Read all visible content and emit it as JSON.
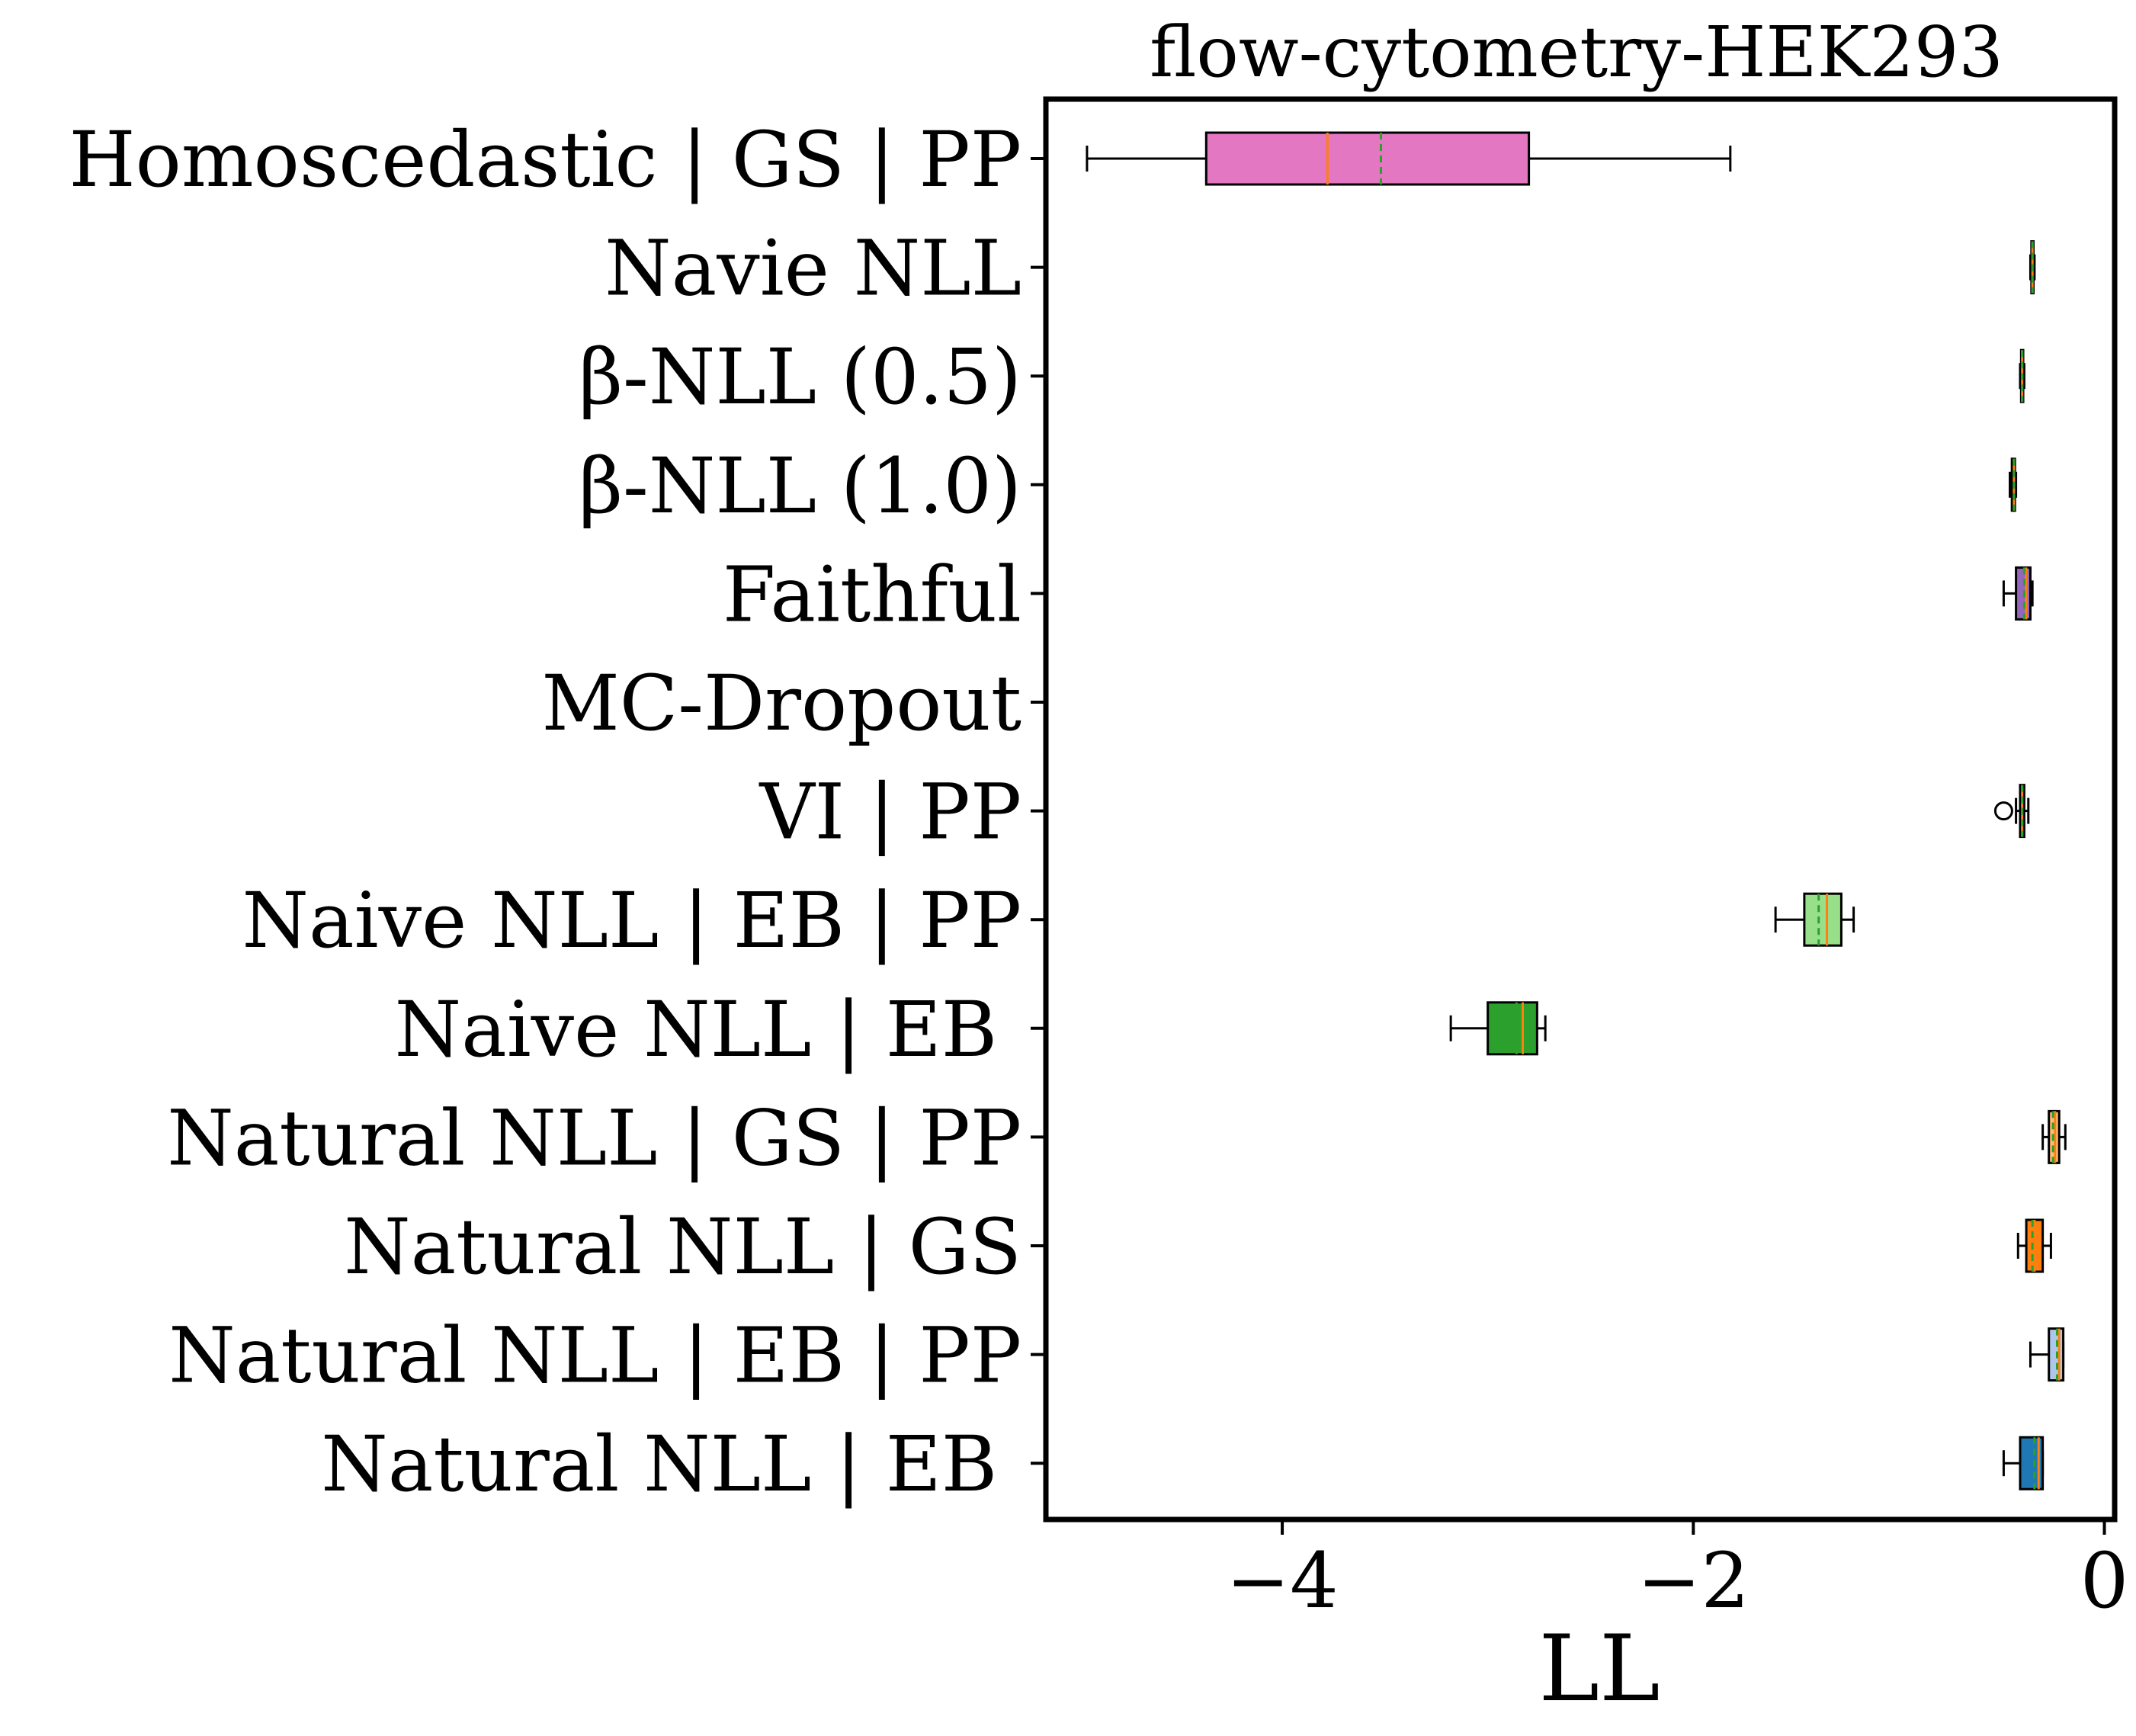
{
  "chart_data": {
    "type": "boxplot",
    "orientation": "horizontal",
    "title": "flow-cytometry-HEK293",
    "xlabel": "LL",
    "ylabel": "",
    "xlim": [
      -5.15,
      0.05
    ],
    "xticks": [
      {
        "value": -4,
        "label": "−4"
      },
      {
        "value": -2,
        "label": "−2"
      },
      {
        "value": 0,
        "label": "0"
      }
    ],
    "grid": false,
    "legend": "none",
    "median_color": "#ff7f0e",
    "mean_color": "#2ca02c",
    "categories": [
      {
        "label": "Homoscedastic | GS | PP",
        "color": "#e377c2",
        "whislo": -4.95,
        "q1": -4.37,
        "med": -3.78,
        "mean": -3.52,
        "q3": -2.8,
        "whishi": -1.82,
        "fliers": []
      },
      {
        "label": "Navie NLL",
        "color": "#c5b0d5",
        "whislo": -0.36,
        "q1": -0.355,
        "med": -0.35,
        "mean": -0.35,
        "q3": -0.345,
        "whishi": -0.34,
        "fliers": []
      },
      {
        "label": "β-NLL (0.5)",
        "color": "#8c564b",
        "whislo": -0.41,
        "q1": -0.405,
        "med": -0.4,
        "mean": -0.4,
        "q3": -0.395,
        "whishi": -0.39,
        "fliers": []
      },
      {
        "label": "β-NLL (1.0)",
        "color": "#c49c94",
        "whislo": -0.46,
        "q1": -0.45,
        "med": -0.44,
        "mean": -0.44,
        "q3": -0.435,
        "whishi": -0.43,
        "fliers": []
      },
      {
        "label": "Faithful",
        "color": "#9467bd",
        "whislo": -0.49,
        "q1": -0.43,
        "med": -0.38,
        "mean": -0.39,
        "q3": -0.36,
        "whishi": -0.35,
        "fliers": []
      },
      {
        "label": "MC-Dropout",
        "color": "#d62728",
        "empty": true
      },
      {
        "label": "VI | PP",
        "color": "#98df8a",
        "whislo": -0.43,
        "q1": -0.41,
        "med": -0.4,
        "mean": -0.4,
        "q3": -0.39,
        "whishi": -0.37,
        "fliers": [
          -0.49
        ]
      },
      {
        "label": "Naive NLL | EB | PP",
        "color": "#98df8a",
        "whislo": -1.6,
        "q1": -1.46,
        "med": -1.35,
        "mean": -1.39,
        "q3": -1.28,
        "whishi": -1.22,
        "fliers": []
      },
      {
        "label": "Naive NLL | EB ",
        "color": "#2ca02c",
        "whislo": -3.18,
        "q1": -3.0,
        "med": -2.83,
        "mean": -2.86,
        "q3": -2.76,
        "whishi": -2.72,
        "fliers": []
      },
      {
        "label": "Natural NLL | GS | PP",
        "color": "#ffbb78",
        "whislo": -0.3,
        "q1": -0.27,
        "med": -0.24,
        "mean": -0.25,
        "q3": -0.22,
        "whishi": -0.19,
        "fliers": []
      },
      {
        "label": "Natural NLL | GS",
        "color": "#ff7f0e",
        "whislo": -0.42,
        "q1": -0.38,
        "med": -0.34,
        "mean": -0.35,
        "q3": -0.3,
        "whishi": -0.26,
        "fliers": []
      },
      {
        "label": "Natural NLL | EB | PP",
        "color": "#aec7e8",
        "whislo": -0.36,
        "q1": -0.27,
        "med": -0.22,
        "mean": -0.23,
        "q3": -0.2,
        "whishi": -0.2,
        "fliers": []
      },
      {
        "label": "Natural NLL | EB ",
        "color": "#1f77b4",
        "whislo": -0.49,
        "q1": -0.41,
        "med": -0.32,
        "mean": -0.34,
        "q3": -0.3,
        "whishi": -0.3,
        "fliers": []
      }
    ]
  }
}
